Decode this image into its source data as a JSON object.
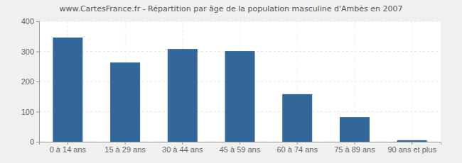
{
  "chart_data": {
    "type": "bar",
    "title": "www.CartesFrance.fr - Répartition par âge de la population masculine d'Ambès en 2007",
    "categories": [
      "0 à 14 ans",
      "15 à 29 ans",
      "30 à 44 ans",
      "45 à 59 ans",
      "60 à 74 ans",
      "75 à 89 ans",
      "90 ans et plus"
    ],
    "values": [
      346,
      263,
      308,
      301,
      158,
      82,
      5
    ],
    "color": "#336699",
    "ylim": [
      0,
      400
    ],
    "yticks": [
      0,
      100,
      200,
      300,
      400
    ],
    "grid": true
  }
}
